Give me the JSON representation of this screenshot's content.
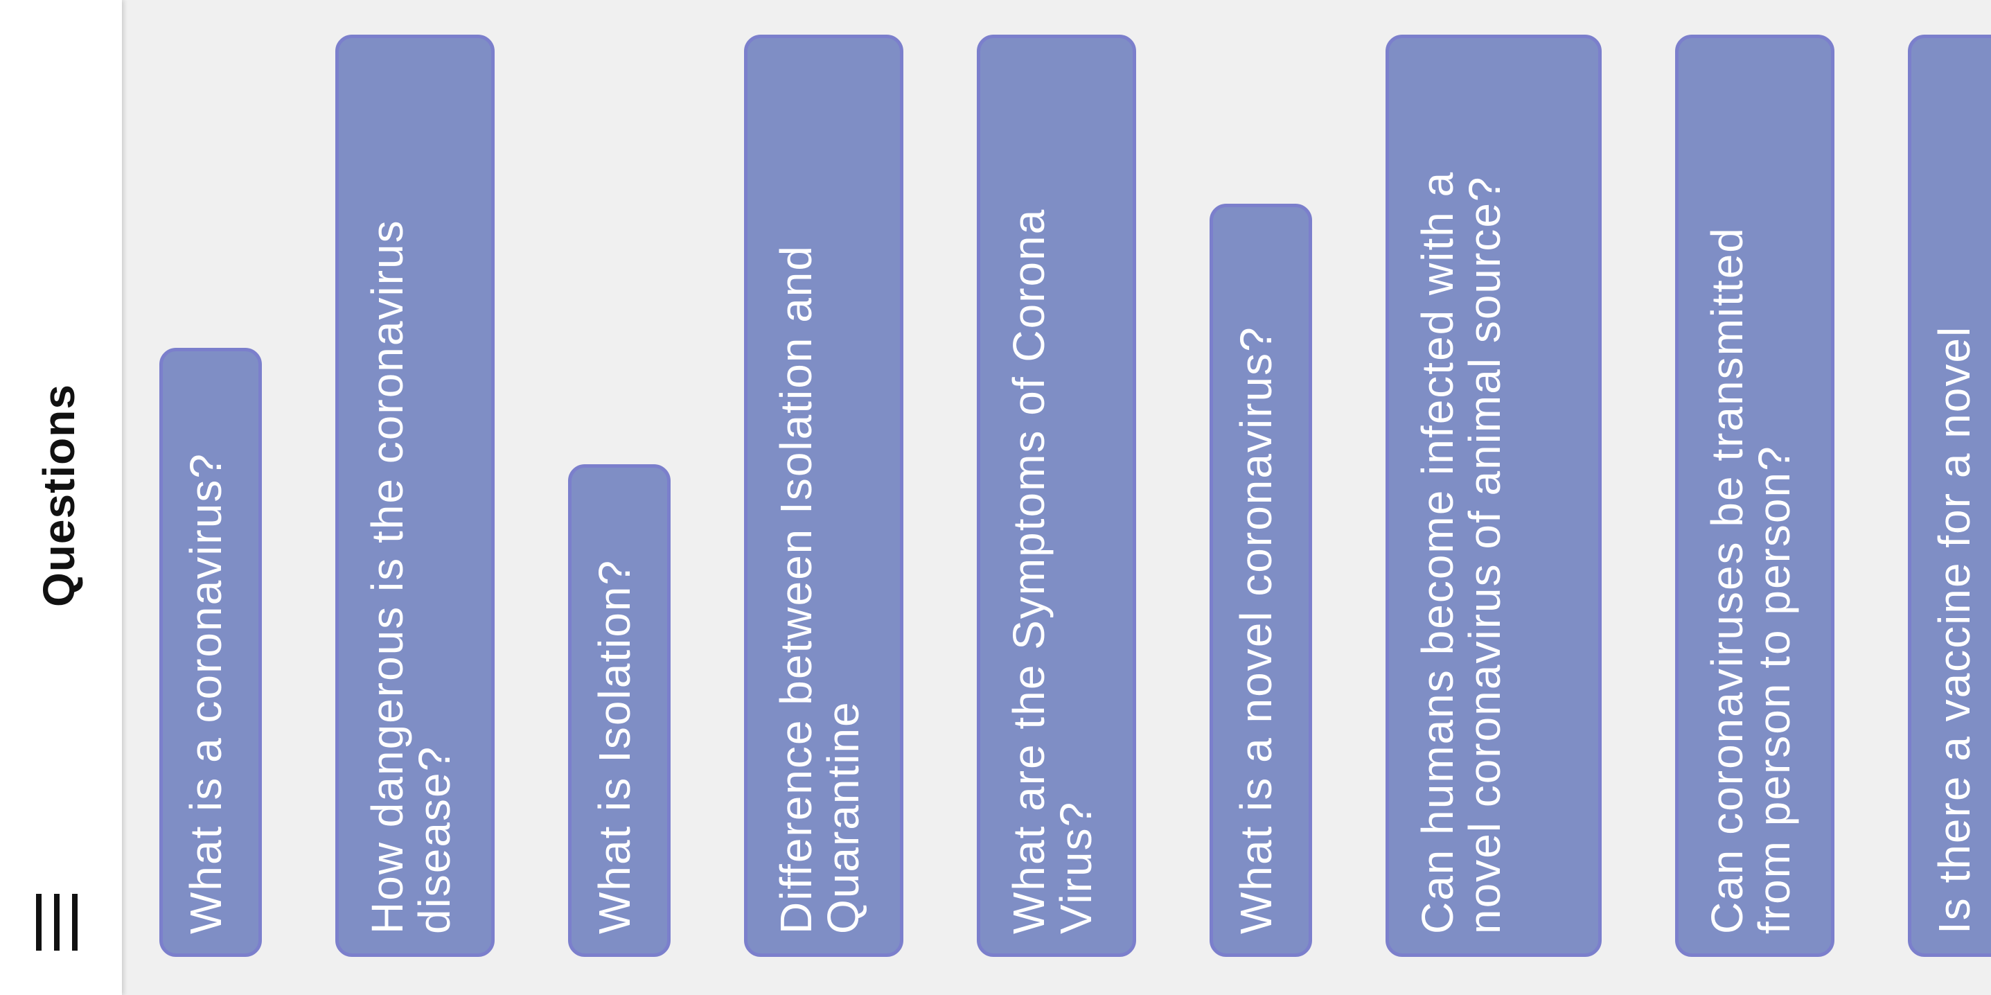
{
  "app": {
    "title": "Questions",
    "menu_icon": "menu-icon"
  },
  "colors": {
    "card_fill": "#7f8ec5",
    "card_border": "#7b7fcc",
    "card_text": "#ffffff",
    "background": "#f0f0f0",
    "appbar": "#ffffff"
  },
  "questions": [
    {
      "lines": [
        "What is a coronavirus?"
      ]
    },
    {
      "lines": [
        "How dangerous is the coronavirus",
        "disease?"
      ]
    },
    {
      "lines": [
        "What is Isolation?"
      ]
    },
    {
      "lines": [
        "Difference between Isolation and",
        "Quarantine"
      ]
    },
    {
      "lines": [
        "What are the Symptoms of Corona",
        "Virus?"
      ]
    },
    {
      "lines": [
        "What is a novel coronavirus?"
      ]
    },
    {
      "lines": [
        "Can humans become infected with a",
        "novel coronavirus of animal source?"
      ]
    },
    {
      "lines": [
        "Can coronaviruses be transmitted",
        "from person to person?"
      ]
    },
    {
      "lines": [
        "Is there a vaccine for a novel"
      ]
    }
  ]
}
